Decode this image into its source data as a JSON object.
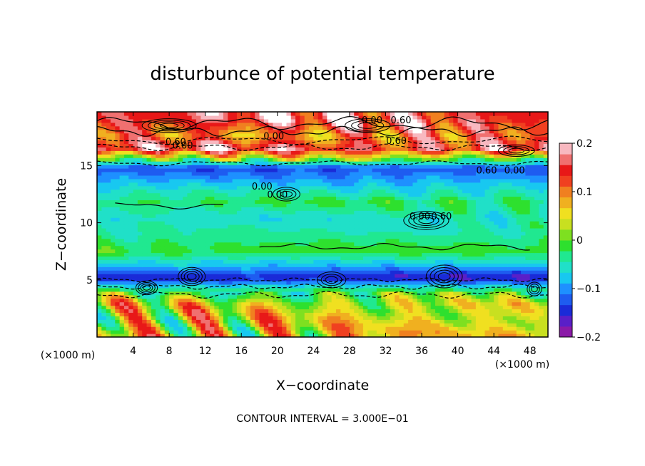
{
  "chart_data": {
    "type": "heatmap",
    "title": "disturbunce of potential temperature",
    "xlabel": "X−coordinate",
    "ylabel": "Z−coordinate",
    "x_unit": "(×1000 m)",
    "y_unit": "(×1000 m)",
    "xlim": [
      0,
      50
    ],
    "ylim": [
      0,
      19.7
    ],
    "x_ticks": [
      4,
      8,
      12,
      16,
      20,
      24,
      28,
      32,
      36,
      40,
      44,
      48
    ],
    "y_ticks": [
      5,
      10,
      15
    ],
    "colorbar": {
      "range": [
        -0.2,
        0.2
      ],
      "ticks": [
        0.2,
        0.1,
        0,
        -0.1,
        -0.2
      ],
      "tick_labels": [
        "0.2",
        "0.1",
        "0",
        "−0.1",
        "−0.2"
      ],
      "colors": [
        "#8b1aa8",
        "#5a1fc8",
        "#1a2bd8",
        "#1e5cf0",
        "#1e90ff",
        "#18c8f0",
        "#20e0c8",
        "#20e890",
        "#2ee02e",
        "#7ee020",
        "#c8e020",
        "#f0e020",
        "#f0b020",
        "#f08020",
        "#f04020",
        "#e81818",
        "#f07070",
        "#f8b8c0"
      ]
    },
    "contour_labels": [
      "0.00",
      "0.60",
      "−0.60",
      "0.00",
      "0.60",
      "0.00",
      "0.60",
      "0.00",
      "0.00",
      "0.00",
      "0.60",
      "0.00"
    ],
    "footnote": "CONTOUR INTERVAL = 3.000E−01",
    "rows_z": [
      19.0,
      17.6,
      16.5,
      14.8,
      13.2,
      11.8,
      10.4,
      9.0,
      7.6,
      6.3,
      5.2,
      4.2,
      2.9,
      1.6,
      0.5
    ],
    "rows_mean": [
      0.16,
      0.1,
      0.16,
      -0.13,
      -0.07,
      -0.02,
      -0.06,
      -0.04,
      -0.01,
      -0.08,
      -0.16,
      -0.03,
      0.04,
      0.05,
      0.06
    ]
  }
}
